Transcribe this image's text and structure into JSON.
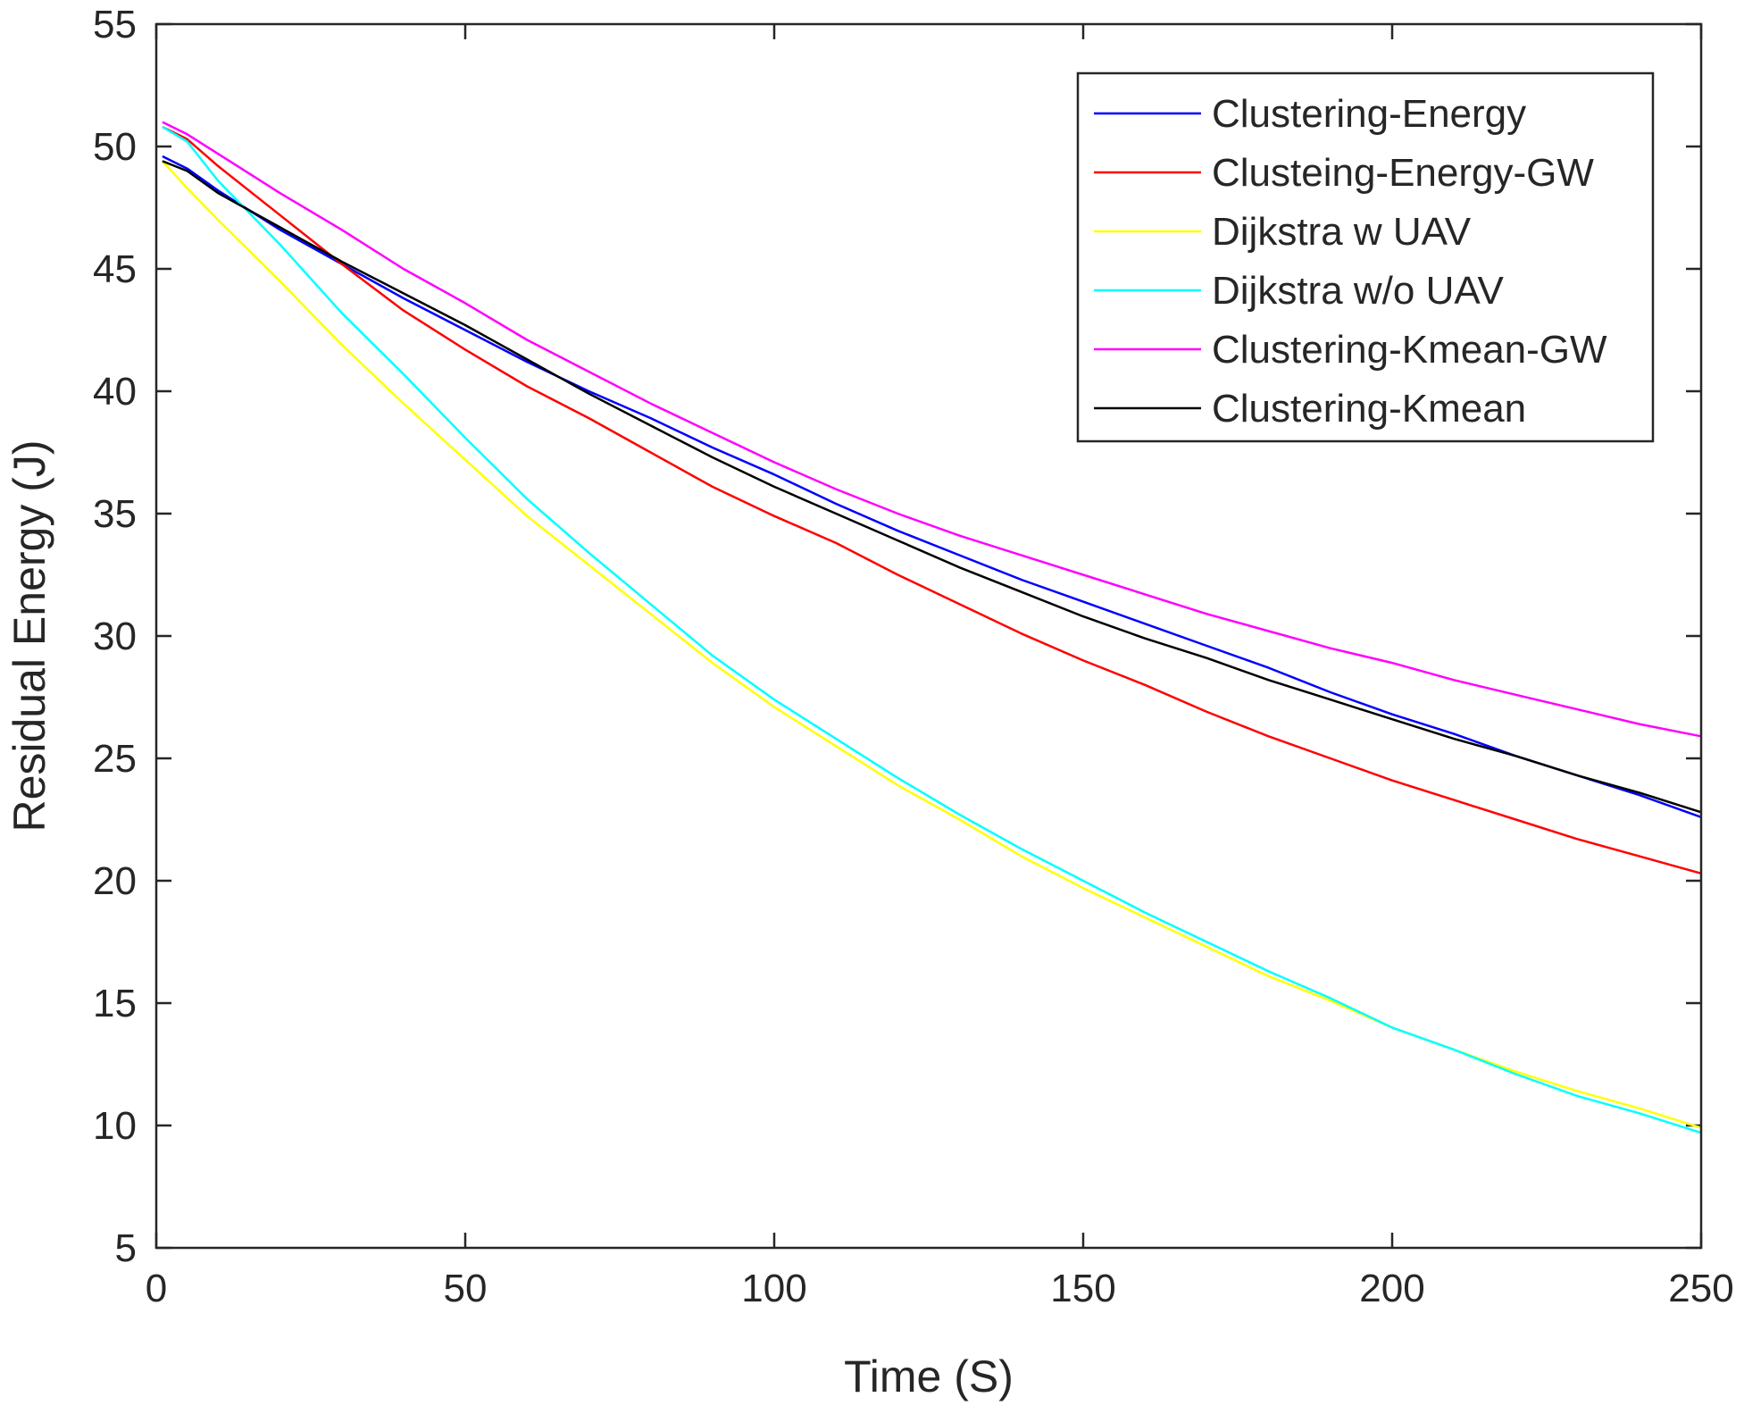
{
  "chart_data": {
    "type": "line",
    "title": "",
    "xlabel": "Time (S)",
    "ylabel": "Residual Energy (J)",
    "xlim": [
      0,
      250
    ],
    "ylim": [
      5,
      55
    ],
    "xticks": [
      0,
      50,
      100,
      150,
      200,
      250
    ],
    "yticks": [
      5,
      10,
      15,
      20,
      25,
      30,
      35,
      40,
      45,
      50,
      55
    ],
    "xtick_labels": [
      "0",
      "50",
      "100",
      "150",
      "200",
      "250"
    ],
    "ytick_labels": [
      "5",
      "10",
      "15",
      "20",
      "25",
      "30",
      "35",
      "40",
      "45",
      "50",
      "55"
    ],
    "grid": false,
    "legend_position": "top-right",
    "series": [
      {
        "name": "Clustering-Energy",
        "color": "#0000ff",
        "x": [
          1,
          5,
          10,
          20,
          30,
          40,
          50,
          60,
          70,
          80,
          90,
          100,
          110,
          120,
          130,
          140,
          150,
          160,
          170,
          180,
          190,
          200,
          210,
          220,
          230,
          240,
          250
        ],
        "y": [
          49.6,
          49.1,
          48.2,
          46.6,
          45.2,
          43.8,
          42.5,
          41.2,
          40.0,
          38.9,
          37.7,
          36.6,
          35.4,
          34.3,
          33.3,
          32.3,
          31.4,
          30.5,
          29.6,
          28.7,
          27.7,
          26.8,
          26.0,
          25.1,
          24.3,
          23.5,
          22.6
        ]
      },
      {
        "name": "Clusteing-Energy-GW",
        "color": "#ff0000",
        "x": [
          1,
          5,
          10,
          20,
          30,
          40,
          50,
          60,
          70,
          80,
          90,
          100,
          110,
          120,
          130,
          140,
          150,
          160,
          170,
          180,
          190,
          200,
          210,
          220,
          230,
          240,
          250
        ],
        "y": [
          50.8,
          50.3,
          49.2,
          47.2,
          45.2,
          43.3,
          41.7,
          40.2,
          38.9,
          37.5,
          36.1,
          34.9,
          33.8,
          32.5,
          31.3,
          30.1,
          29.0,
          28.0,
          26.9,
          25.9,
          25.0,
          24.1,
          23.3,
          22.5,
          21.7,
          21.0,
          20.3
        ]
      },
      {
        "name": "Dijkstra w UAV",
        "color": "#ffff00",
        "x": [
          1,
          5,
          10,
          20,
          30,
          40,
          50,
          60,
          70,
          80,
          90,
          100,
          110,
          120,
          130,
          140,
          150,
          160,
          170,
          180,
          190,
          200,
          210,
          220,
          230,
          240,
          250
        ],
        "y": [
          49.4,
          48.3,
          47.0,
          44.5,
          41.9,
          39.5,
          37.2,
          34.9,
          32.9,
          30.9,
          28.9,
          27.1,
          25.5,
          23.9,
          22.5,
          21.0,
          19.7,
          18.5,
          17.3,
          16.1,
          15.1,
          14.0,
          13.1,
          12.2,
          11.4,
          10.7,
          9.9
        ]
      },
      {
        "name": "Dijkstra w/o UAV",
        "color": "#00ffff",
        "x": [
          1,
          5,
          10,
          20,
          30,
          40,
          50,
          60,
          70,
          80,
          90,
          100,
          110,
          120,
          130,
          140,
          150,
          160,
          170,
          180,
          190,
          200,
          210,
          220,
          230,
          240,
          250
        ],
        "y": [
          50.8,
          50.2,
          48.6,
          46.0,
          43.2,
          40.7,
          38.1,
          35.6,
          33.4,
          31.3,
          29.2,
          27.4,
          25.8,
          24.2,
          22.7,
          21.3,
          20.0,
          18.7,
          17.5,
          16.3,
          15.2,
          14.0,
          13.1,
          12.1,
          11.2,
          10.5,
          9.7
        ]
      },
      {
        "name": "Clustering-Kmean-GW",
        "color": "#ff00ff",
        "x": [
          1,
          5,
          10,
          20,
          30,
          40,
          50,
          60,
          70,
          80,
          90,
          100,
          110,
          120,
          130,
          140,
          150,
          160,
          170,
          180,
          190,
          200,
          210,
          220,
          230,
          240,
          250
        ],
        "y": [
          51.0,
          50.5,
          49.7,
          48.1,
          46.6,
          45.0,
          43.6,
          42.1,
          40.8,
          39.5,
          38.3,
          37.1,
          36.0,
          35.0,
          34.1,
          33.3,
          32.5,
          31.7,
          30.9,
          30.2,
          29.5,
          28.9,
          28.2,
          27.6,
          27.0,
          26.4,
          25.9
        ]
      },
      {
        "name": "Clustering-Kmean",
        "color": "#000000",
        "x": [
          1,
          5,
          10,
          20,
          30,
          40,
          50,
          60,
          70,
          80,
          90,
          100,
          110,
          120,
          130,
          140,
          150,
          160,
          170,
          180,
          190,
          200,
          210,
          220,
          230,
          240,
          250
        ],
        "y": [
          49.4,
          49.0,
          48.1,
          46.7,
          45.3,
          44.0,
          42.7,
          41.3,
          39.9,
          38.6,
          37.3,
          36.1,
          35.0,
          33.9,
          32.8,
          31.8,
          30.8,
          29.9,
          29.1,
          28.2,
          27.4,
          26.6,
          25.8,
          25.1,
          24.3,
          23.6,
          22.8
        ]
      }
    ]
  }
}
